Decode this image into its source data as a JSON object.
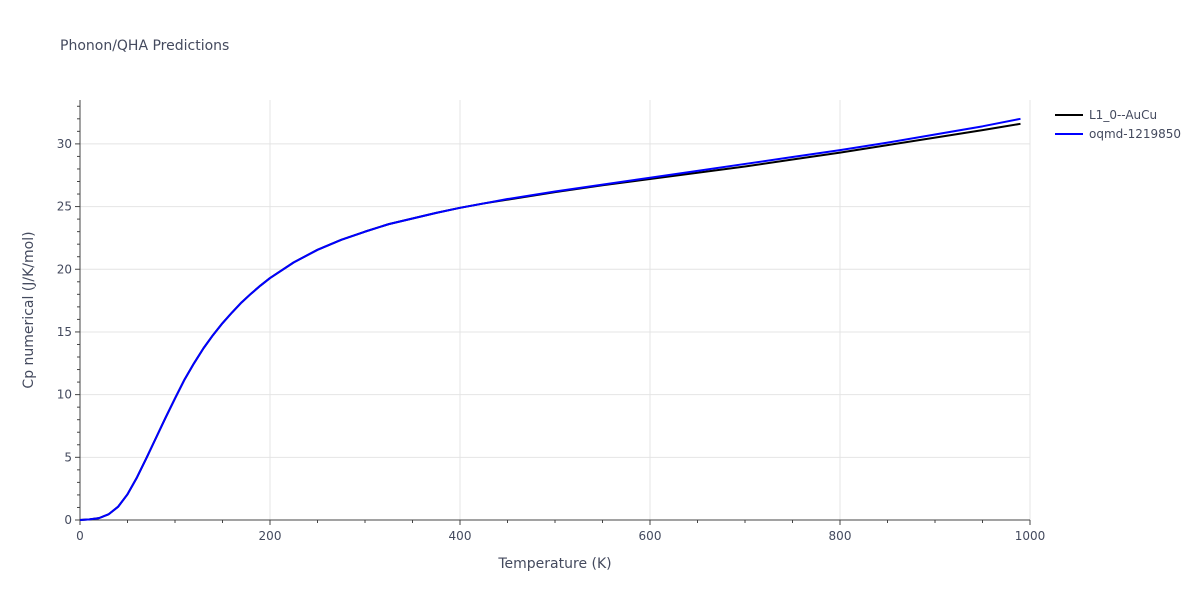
{
  "chart_data": {
    "type": "line",
    "title": "Phonon/QHA Predictions",
    "xlabel": "Temperature (K)",
    "ylabel": "Cp numerical (J/K/mol)",
    "xlim": [
      0,
      1000
    ],
    "ylim": [
      0,
      33.5
    ],
    "x_ticks": [
      0,
      200,
      400,
      600,
      800,
      1000
    ],
    "y_ticks": [
      0,
      5,
      10,
      15,
      20,
      25,
      30
    ],
    "grid": true,
    "legend_position": "top-right",
    "series": [
      {
        "name": "L1_0--AuCu",
        "color": "#000000",
        "x": [
          0,
          10,
          20,
          30,
          40,
          50,
          60,
          70,
          80,
          90,
          100,
          110,
          120,
          130,
          140,
          150,
          160,
          170,
          180,
          190,
          200,
          225,
          250,
          275,
          300,
          325,
          350,
          375,
          400,
          425,
          450,
          500,
          550,
          600,
          650,
          700,
          750,
          800,
          850,
          900,
          950,
          990
        ],
        "y": [
          0,
          0.05,
          0.15,
          0.45,
          1.05,
          2.05,
          3.4,
          4.95,
          6.55,
          8.15,
          9.7,
          11.2,
          12.5,
          13.7,
          14.75,
          15.7,
          16.55,
          17.35,
          18.05,
          18.7,
          19.3,
          20.55,
          21.55,
          22.35,
          23.0,
          23.6,
          24.05,
          24.5,
          24.9,
          25.25,
          25.55,
          26.15,
          26.7,
          27.2,
          27.7,
          28.2,
          28.75,
          29.3,
          29.9,
          30.5,
          31.1,
          31.6
        ]
      },
      {
        "name": "oqmd-1219850",
        "color": "#0000ff",
        "x": [
          0,
          10,
          20,
          30,
          40,
          50,
          60,
          70,
          80,
          90,
          100,
          110,
          120,
          130,
          140,
          150,
          160,
          170,
          180,
          190,
          200,
          225,
          250,
          275,
          300,
          325,
          350,
          375,
          400,
          425,
          450,
          500,
          550,
          600,
          650,
          700,
          750,
          800,
          850,
          900,
          950,
          990
        ],
        "y": [
          0,
          0.05,
          0.15,
          0.45,
          1.05,
          2.05,
          3.4,
          4.95,
          6.55,
          8.15,
          9.7,
          11.2,
          12.5,
          13.7,
          14.75,
          15.7,
          16.55,
          17.35,
          18.05,
          18.7,
          19.3,
          20.55,
          21.55,
          22.35,
          23.0,
          23.6,
          24.05,
          24.5,
          24.9,
          25.25,
          25.6,
          26.2,
          26.75,
          27.3,
          27.85,
          28.4,
          28.95,
          29.5,
          30.1,
          30.75,
          31.4,
          32.0
        ]
      }
    ]
  }
}
